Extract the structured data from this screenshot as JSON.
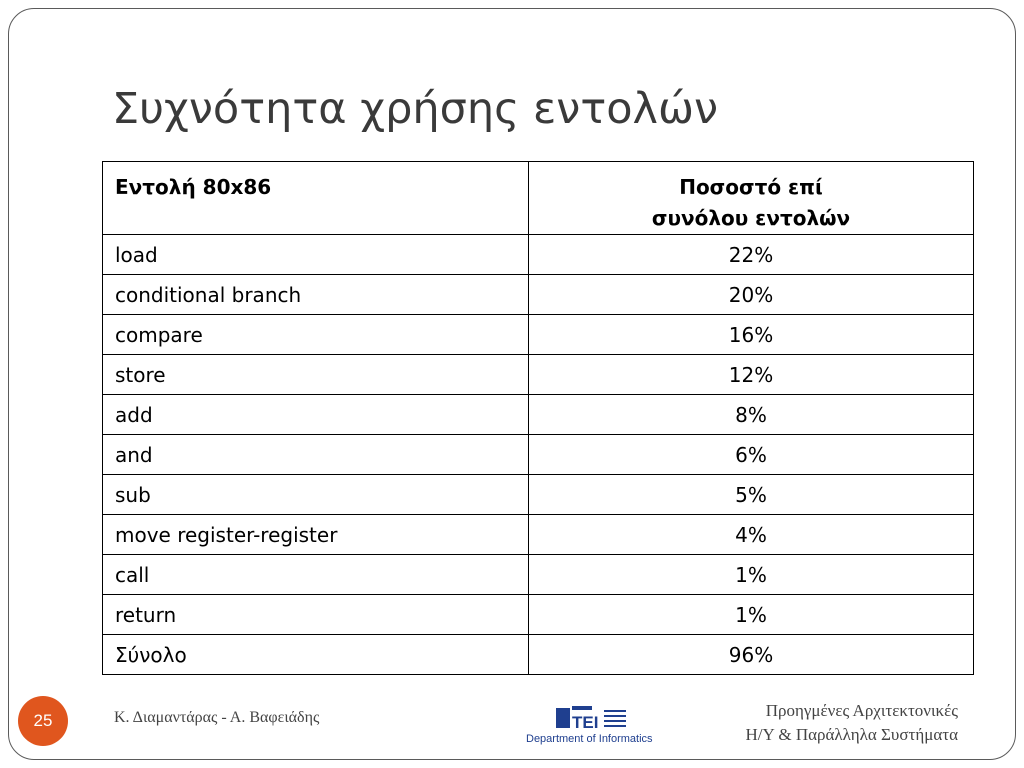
{
  "slide": {
    "title": "Συχνότητα χρήσης εντολών",
    "number": "25"
  },
  "table": {
    "header": {
      "command": "Εντολή 80x86",
      "percent_line1": "Ποσοστό επί",
      "percent_line2": "συνόλου εντολών"
    },
    "rows": [
      {
        "command": "load",
        "percent": "22%"
      },
      {
        "command": "conditional branch",
        "percent": "20%"
      },
      {
        "command": "compare",
        "percent": "16%"
      },
      {
        "command": "store",
        "percent": "12%"
      },
      {
        "command": "add",
        "percent": "8%"
      },
      {
        "command": "and",
        "percent": "6%"
      },
      {
        "command": "sub",
        "percent": "5%"
      },
      {
        "command": "move register-register",
        "percent": "4%"
      },
      {
        "command": "call",
        "percent": "1%"
      },
      {
        "command": "return",
        "percent": "1%"
      },
      {
        "command": "Σύνολο",
        "percent": "96%"
      }
    ]
  },
  "footer": {
    "authors": "Κ. Διαμαντάρας - Α. Βαφειάδης",
    "course_line1": "Προηγμένες Αρχιτεκτονικές",
    "course_line2": "Η/Υ & Παράλληλα Συστήματα",
    "logo_caption": "Department of Informatics",
    "logo_mark": "TEI",
    "accent_color": "#e0561e",
    "logo_blue": "#1f3f8f"
  }
}
